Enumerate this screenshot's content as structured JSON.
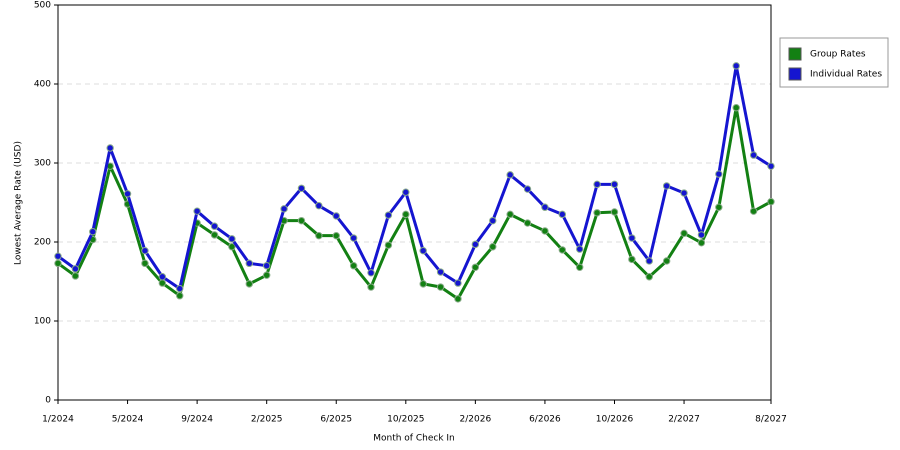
{
  "chart_data": {
    "type": "line",
    "x_label": "Month of Check In",
    "y_label": "Lowest Average Rate (USD)",
    "categories": [
      "1/2024",
      null,
      null,
      null,
      "5/2024",
      null,
      null,
      null,
      "9/2024",
      null,
      null,
      null,
      "2/2025",
      null,
      null,
      null,
      "6/2025",
      null,
      null,
      null,
      "10/2025",
      null,
      null,
      null,
      "2/2026",
      null,
      null,
      null,
      "6/2026",
      null,
      null,
      null,
      "10/2026",
      null,
      null,
      null,
      "2/2027",
      null,
      null,
      null,
      null,
      "8/2027"
    ],
    "series": [
      {
        "name": "Group Rates",
        "color": "#138013",
        "values": [
          173,
          157,
          203,
          296,
          248,
          173,
          148,
          132,
          224,
          209,
          194,
          147,
          158,
          227,
          227,
          208,
          208,
          170,
          143,
          196,
          235,
          147,
          143,
          128,
          168,
          194,
          235,
          224,
          214,
          190,
          168,
          237,
          238,
          178,
          156,
          176,
          211,
          199,
          244,
          370,
          239,
          251
        ]
      },
      {
        "name": "Individual Rates",
        "color": "#1515d0",
        "values": [
          182,
          166,
          213,
          319,
          261,
          189,
          156,
          141,
          239,
          220,
          204,
          173,
          170,
          242,
          268,
          246,
          233,
          205,
          161,
          234,
          263,
          189,
          162,
          148,
          197,
          227,
          285,
          267,
          244,
          235,
          191,
          273,
          273,
          205,
          176,
          271,
          262,
          209,
          286,
          423,
          310,
          296
        ]
      }
    ],
    "ylim": [
      0,
      500
    ],
    "yticks": [
      0,
      100,
      200,
      300,
      400,
      500
    ],
    "grid": true,
    "legend": "right"
  }
}
